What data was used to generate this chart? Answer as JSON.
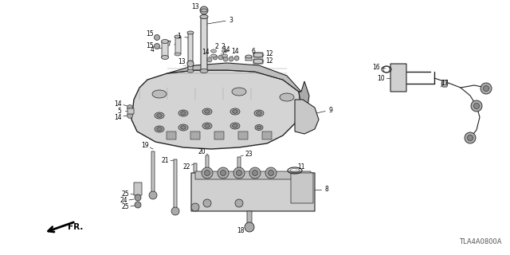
{
  "bg_color": "#ffffff",
  "part_number": "TLA4A0800A",
  "line_color": "#222222",
  "gray_light": "#e8e8e8",
  "gray_mid": "#c0c0c0",
  "gray_dark": "#888888",
  "gray_darker": "#555555"
}
